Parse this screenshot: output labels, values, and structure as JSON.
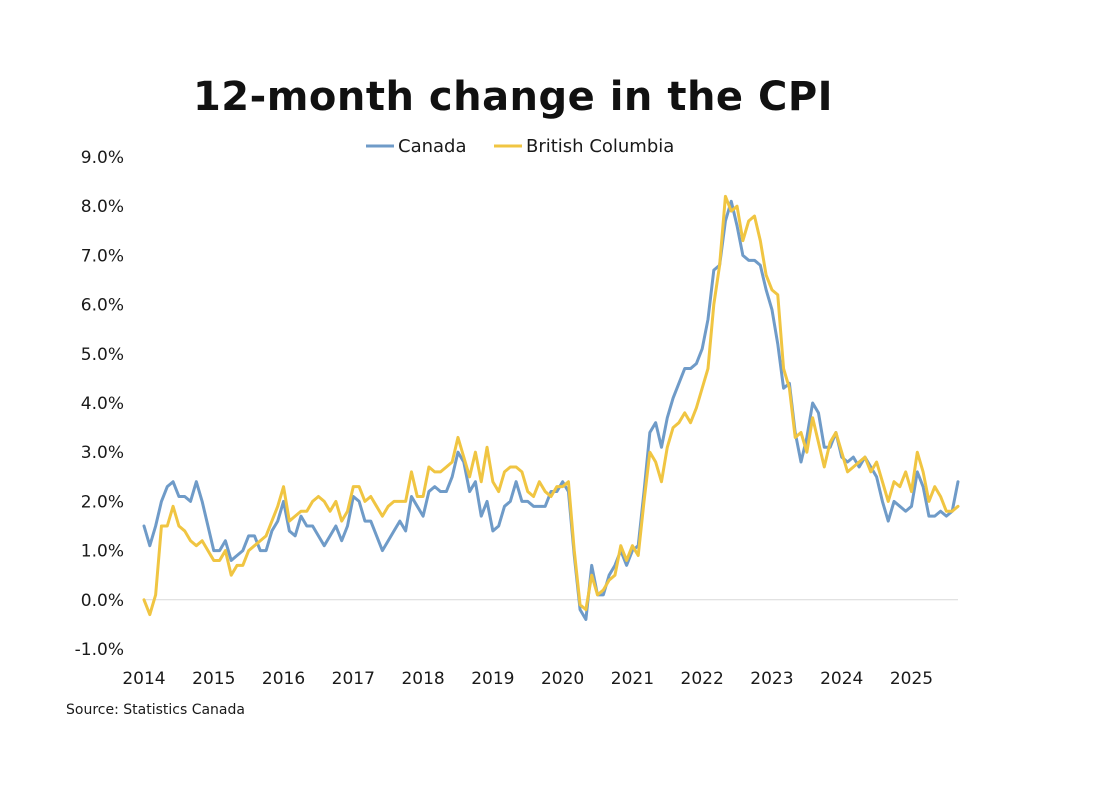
{
  "chart_data": {
    "type": "line",
    "title": "12-month change in the CPI",
    "source": "Source: Statistics Canada",
    "legend_position": "top",
    "grid": false,
    "zero_line": true,
    "ylim": [
      -1.0,
      9.0
    ],
    "y_ticks": [
      "9.0%",
      "8.0%",
      "7.0%",
      "6.0%",
      "5.0%",
      "4.0%",
      "3.0%",
      "2.0%",
      "1.0%",
      "0.0%",
      "-1.0%"
    ],
    "y_tick_values": [
      9,
      8,
      7,
      6,
      5,
      4,
      3,
      2,
      1,
      0,
      -1
    ],
    "x_ticks": [
      "2014",
      "2015",
      "2016",
      "2017",
      "2018",
      "2019",
      "2020",
      "2021",
      "2022",
      "2023",
      "2024",
      "2025"
    ],
    "x_start": "2014-01",
    "series": [
      {
        "name": "Canada",
        "color": "#6f9bc8",
        "values": [
          1.5,
          1.1,
          1.5,
          2.0,
          2.3,
          2.4,
          2.1,
          2.1,
          2.0,
          2.4,
          2.0,
          1.5,
          1.0,
          1.0,
          1.2,
          0.8,
          0.9,
          1.0,
          1.3,
          1.3,
          1.0,
          1.0,
          1.4,
          1.6,
          2.0,
          1.4,
          1.3,
          1.7,
          1.5,
          1.5,
          1.3,
          1.1,
          1.3,
          1.5,
          1.2,
          1.5,
          2.1,
          2.0,
          1.6,
          1.6,
          1.3,
          1.0,
          1.2,
          1.4,
          1.6,
          1.4,
          2.1,
          1.9,
          1.7,
          2.2,
          2.3,
          2.2,
          2.2,
          2.5,
          3.0,
          2.8,
          2.2,
          2.4,
          1.7,
          2.0,
          1.4,
          1.5,
          1.9,
          2.0,
          2.4,
          2.0,
          2.0,
          1.9,
          1.9,
          1.9,
          2.2,
          2.2,
          2.4,
          2.2,
          0.9,
          -0.2,
          -0.4,
          0.7,
          0.1,
          0.1,
          0.5,
          0.7,
          1.0,
          0.7,
          1.0,
          1.1,
          2.2,
          3.4,
          3.6,
          3.1,
          3.7,
          4.1,
          4.4,
          4.7,
          4.7,
          4.8,
          5.1,
          5.7,
          6.7,
          6.8,
          7.7,
          8.1,
          7.6,
          7.0,
          6.9,
          6.9,
          6.8,
          6.3,
          5.9,
          5.2,
          4.3,
          4.4,
          3.4,
          2.8,
          3.3,
          4.0,
          3.8,
          3.1,
          3.1,
          3.4,
          2.9,
          2.8,
          2.9,
          2.7,
          2.9,
          2.7,
          2.5,
          2.0,
          1.6,
          2.0,
          1.9,
          1.8,
          1.9,
          2.6,
          2.3,
          1.7,
          1.7,
          1.8,
          1.7,
          1.8,
          2.4
        ]
      },
      {
        "name": "British Columbia",
        "color": "#f0c542",
        "values": [
          0.0,
          -0.3,
          0.1,
          1.5,
          1.5,
          1.9,
          1.5,
          1.4,
          1.2,
          1.1,
          1.2,
          1.0,
          0.8,
          0.8,
          1.0,
          0.5,
          0.7,
          0.7,
          1.0,
          1.1,
          1.2,
          1.3,
          1.6,
          1.9,
          2.3,
          1.6,
          1.7,
          1.8,
          1.8,
          2.0,
          2.1,
          2.0,
          1.8,
          2.0,
          1.6,
          1.8,
          2.3,
          2.3,
          2.0,
          2.1,
          1.9,
          1.7,
          1.9,
          2.0,
          2.0,
          2.0,
          2.6,
          2.1,
          2.1,
          2.7,
          2.6,
          2.6,
          2.7,
          2.8,
          3.3,
          2.9,
          2.5,
          3.0,
          2.4,
          3.1,
          2.4,
          2.2,
          2.6,
          2.7,
          2.7,
          2.6,
          2.2,
          2.1,
          2.4,
          2.2,
          2.1,
          2.3,
          2.3,
          2.4,
          1.0,
          -0.1,
          -0.2,
          0.5,
          0.1,
          0.2,
          0.4,
          0.5,
          1.1,
          0.8,
          1.1,
          0.9,
          2.0,
          3.0,
          2.8,
          2.4,
          3.1,
          3.5,
          3.6,
          3.8,
          3.6,
          3.9,
          4.3,
          4.7,
          6.0,
          6.8,
          8.2,
          7.9,
          8.0,
          7.3,
          7.7,
          7.8,
          7.3,
          6.6,
          6.3,
          6.2,
          4.7,
          4.3,
          3.3,
          3.4,
          3.0,
          3.7,
          3.2,
          2.7,
          3.2,
          3.4,
          3.0,
          2.6,
          2.7,
          2.8,
          2.9,
          2.6,
          2.8,
          2.4,
          2.0,
          2.4,
          2.3,
          2.6,
          2.2,
          3.0,
          2.6,
          2.0,
          2.3,
          2.1,
          1.8,
          1.8,
          1.9
        ]
      }
    ]
  }
}
